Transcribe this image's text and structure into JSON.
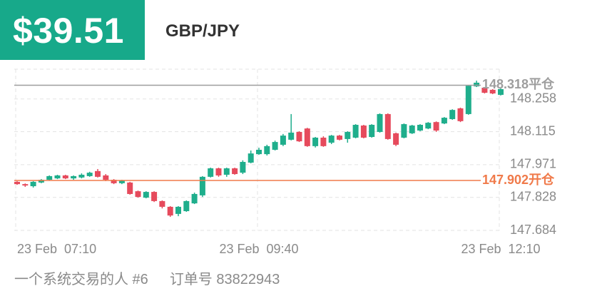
{
  "header": {
    "price": "$39.51",
    "pair": "GBP/JPY"
  },
  "chart_data": {
    "type": "candlestick",
    "categories": [
      "23 Feb  07:10",
      null,
      null,
      null,
      null,
      null,
      null,
      null,
      null,
      null,
      null,
      null,
      null,
      null,
      null,
      null,
      null,
      null,
      null,
      null,
      null,
      null,
      null,
      null,
      null,
      null,
      null,
      null,
      null,
      null,
      "23 Feb  09:40",
      null,
      null,
      null,
      null,
      null,
      null,
      null,
      null,
      null,
      null,
      null,
      null,
      null,
      null,
      null,
      null,
      null,
      null,
      null,
      null,
      null,
      null,
      null,
      null,
      null,
      null,
      null,
      null,
      null,
      "23 Feb  12:10"
    ],
    "ohlc": [
      [
        147.896,
        147.899,
        147.883,
        147.886
      ],
      [
        147.886,
        147.889,
        147.874,
        147.88
      ],
      [
        147.877,
        147.899,
        147.871,
        147.896
      ],
      [
        147.893,
        147.908,
        147.89,
        147.905
      ],
      [
        147.905,
        147.924,
        147.902,
        147.921
      ],
      [
        147.911,
        147.927,
        147.908,
        147.924
      ],
      [
        147.924,
        147.927,
        147.908,
        147.911
      ],
      [
        147.911,
        147.924,
        147.905,
        147.921
      ],
      [
        147.915,
        147.933,
        147.911,
        147.927
      ],
      [
        147.921,
        147.94,
        147.918,
        147.936
      ],
      [
        147.943,
        147.952,
        147.915,
        147.918
      ],
      [
        147.924,
        147.93,
        147.899,
        147.905
      ],
      [
        147.905,
        147.908,
        147.886,
        147.89
      ],
      [
        147.89,
        147.905,
        147.886,
        147.902
      ],
      [
        147.893,
        147.896,
        147.84,
        147.843
      ],
      [
        147.855,
        147.858,
        147.827,
        147.83
      ],
      [
        147.827,
        147.855,
        147.824,
        147.852
      ],
      [
        147.852,
        147.855,
        147.808,
        147.812
      ],
      [
        147.812,
        147.815,
        147.78,
        147.787
      ],
      [
        147.787,
        147.79,
        147.743,
        147.749
      ],
      [
        147.756,
        147.79,
        147.746,
        147.787
      ],
      [
        147.768,
        147.815,
        147.765,
        147.812
      ],
      [
        147.802,
        147.849,
        147.799,
        147.843
      ],
      [
        147.837,
        147.921,
        147.83,
        147.918
      ],
      [
        147.918,
        147.958,
        147.915,
        147.955
      ],
      [
        147.955,
        147.958,
        147.918,
        147.924
      ],
      [
        147.927,
        147.958,
        147.918,
        147.955
      ],
      [
        147.955,
        147.958,
        147.927,
        147.93
      ],
      [
        147.936,
        147.99,
        147.93,
        147.983
      ],
      [
        147.98,
        148.033,
        147.977,
        148.02
      ],
      [
        148.017,
        148.045,
        148.014,
        148.036
      ],
      [
        148.017,
        148.058,
        148.011,
        148.052
      ],
      [
        148.036,
        148.076,
        148.033,
        148.07
      ],
      [
        148.058,
        148.105,
        148.052,
        148.098
      ],
      [
        148.08,
        148.192,
        148.077,
        148.111
      ],
      [
        148.114,
        148.117,
        148.07,
        148.073
      ],
      [
        148.129,
        148.132,
        148.049,
        148.052
      ],
      [
        148.052,
        148.092,
        148.046,
        148.089
      ],
      [
        148.089,
        148.095,
        148.049,
        148.052
      ],
      [
        148.067,
        148.101,
        148.061,
        148.098
      ],
      [
        148.098,
        148.101,
        148.077,
        148.08
      ],
      [
        148.083,
        148.117,
        148.067,
        148.114
      ],
      [
        148.089,
        148.148,
        148.086,
        148.145
      ],
      [
        148.142,
        148.145,
        148.086,
        148.089
      ],
      [
        148.092,
        148.148,
        148.089,
        148.145
      ],
      [
        148.114,
        148.195,
        148.111,
        148.192
      ],
      [
        148.192,
        148.195,
        148.08,
        148.083
      ],
      [
        148.108,
        148.111,
        148.052,
        148.058
      ],
      [
        148.089,
        148.151,
        148.086,
        148.148
      ],
      [
        148.108,
        148.145,
        148.105,
        148.142
      ],
      [
        148.12,
        148.148,
        148.117,
        148.145
      ],
      [
        148.129,
        148.157,
        148.126,
        148.154
      ],
      [
        148.157,
        148.16,
        148.114,
        148.12
      ],
      [
        148.151,
        148.179,
        148.148,
        148.176
      ],
      [
        148.17,
        148.213,
        148.167,
        148.21
      ],
      [
        148.217,
        148.22,
        148.157,
        148.161
      ],
      [
        148.192,
        148.319,
        148.189,
        148.316
      ],
      [
        148.313,
        148.338,
        148.31,
        148.329
      ],
      [
        148.307,
        148.31,
        148.282,
        148.285
      ],
      [
        148.298,
        148.301,
        148.279,
        148.282
      ],
      [
        148.276,
        148.304,
        148.273,
        148.301
      ]
    ],
    "up_color": "#1fae8c",
    "down_color": "#e64a5c",
    "ylim": [
      147.684,
      148.388
    ],
    "yticks": [
      147.684,
      147.828,
      147.971,
      148.115,
      148.258
    ],
    "grid": true,
    "reference_lines": [
      {
        "value": 148.318,
        "label": "148.318平仓",
        "color": "#9e9e9e"
      },
      {
        "value": 147.902,
        "label": "147.902开仓",
        "color": "#f07a4a"
      }
    ]
  },
  "footer": {
    "trader": "一个系统交易的人 #6",
    "order": "订单号 83822943"
  }
}
